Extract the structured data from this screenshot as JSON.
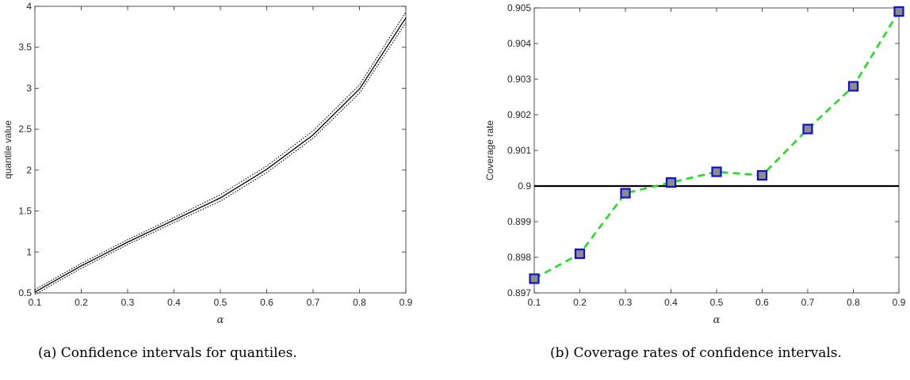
{
  "chart_data": [
    {
      "type": "line",
      "xlabel": "α",
      "ylabel": "quantile value",
      "xlim": [
        0.1,
        0.9
      ],
      "ylim": [
        0.5,
        4
      ],
      "xticks": [
        "0.1",
        "0.2",
        "0.3",
        "0.4",
        "0.5",
        "0.6",
        "0.7",
        "0.8",
        "0.9"
      ],
      "yticks": [
        "0.5",
        "1",
        "1.5",
        "2",
        "2.5",
        "3",
        "3.5",
        "4"
      ],
      "x": [
        0.1,
        0.2,
        0.3,
        0.4,
        0.5,
        0.6,
        0.7,
        0.8,
        0.9
      ],
      "series": [
        {
          "style": "dotted",
          "color": "#000000",
          "values": [
            0.48,
            0.8,
            1.09,
            1.36,
            1.62,
            1.97,
            2.39,
            2.94,
            3.8
          ]
        },
        {
          "style": "solid",
          "color": "#000000",
          "values": [
            0.51,
            0.83,
            1.12,
            1.39,
            1.66,
            2.01,
            2.43,
            2.99,
            3.86
          ]
        },
        {
          "style": "dotted",
          "color": "#000000",
          "values": [
            0.54,
            0.86,
            1.15,
            1.42,
            1.7,
            2.05,
            2.48,
            3.04,
            3.93
          ]
        }
      ],
      "grid": false,
      "caption": "(a)  Confidence intervals for quantiles."
    },
    {
      "type": "line",
      "xlabel": "α",
      "ylabel": "Coverage rate",
      "xlim": [
        0.1,
        0.9
      ],
      "ylim": [
        0.897,
        0.905
      ],
      "xticks": [
        "0.1",
        "0.2",
        "0.3",
        "0.4",
        "0.5",
        "0.6",
        "0.7",
        "0.8",
        "0.9"
      ],
      "yticks": [
        "0.897",
        "0.898",
        "0.899",
        "0.9",
        "0.901",
        "0.902",
        "0.903",
        "0.904",
        "0.905"
      ],
      "x": [
        0.1,
        0.2,
        0.3,
        0.4,
        0.5,
        0.6,
        0.7,
        0.8,
        0.9
      ],
      "series": [
        {
          "style": "dashed",
          "color": "#22dd22",
          "marker": "square",
          "marker_face": "#8c8c8c",
          "marker_edge": "#1010c8",
          "values": [
            0.8974,
            0.8981,
            0.8998,
            0.9001,
            0.9004,
            0.9003,
            0.9016,
            0.9028,
            0.9049
          ]
        }
      ],
      "reference_line": {
        "y": 0.9,
        "color": "#000000"
      },
      "grid": false,
      "caption": "(b)  Coverage rates of confidence intervals."
    }
  ]
}
